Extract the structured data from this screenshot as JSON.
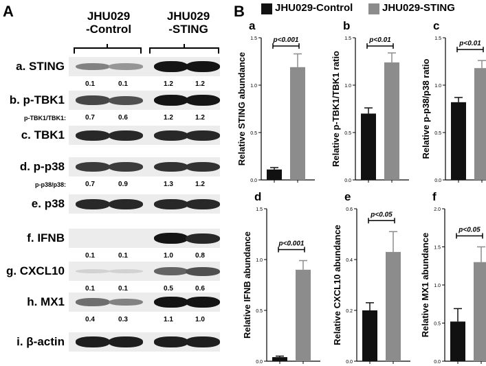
{
  "panel_a": {
    "letter": "A",
    "groups": [
      {
        "line1": "JHU029",
        "line2": "-Control"
      },
      {
        "line1": "JHU029",
        "line2": "-STING"
      }
    ],
    "rows": [
      {
        "label": "a. STING",
        "ratios": [
          "0.1",
          "0.1",
          "1.2",
          "1.2"
        ],
        "ratio_label": "",
        "intensity": [
          0.45,
          0.35,
          1.0,
          1.0
        ]
      },
      {
        "label": "b. p-TBK1",
        "ratios": [
          "0.7",
          "0.6",
          "1.2",
          "1.2"
        ],
        "ratio_label": "p-TBK1/TBK1:",
        "intensity": [
          0.75,
          0.7,
          1.0,
          1.0
        ]
      },
      {
        "label": "c. TBK1",
        "ratios": [],
        "ratio_label": "",
        "intensity": [
          0.9,
          0.9,
          0.9,
          0.9
        ]
      },
      {
        "label": "d. p-p38",
        "ratios": [
          "0.7",
          "0.9",
          "1.3",
          "1.2"
        ],
        "ratio_label": "p-p38/p38:",
        "intensity": [
          0.8,
          0.8,
          0.85,
          0.85
        ]
      },
      {
        "label": "e. p38",
        "ratios": [],
        "ratio_label": "",
        "intensity": [
          0.9,
          0.9,
          0.9,
          0.9
        ]
      },
      {
        "label": "f. IFNB",
        "ratios": [
          "0.1",
          "0.1",
          "1.0",
          "0.8"
        ],
        "ratio_label": "",
        "intensity": [
          0.0,
          0.0,
          1.0,
          0.9
        ]
      },
      {
        "label": "g. CXCL10",
        "ratios": [
          "0.1",
          "0.1",
          "0.5",
          "0.6"
        ],
        "ratio_label": "",
        "intensity": [
          0.05,
          0.05,
          0.6,
          0.7
        ]
      },
      {
        "label": "h. MX1",
        "ratios": [
          "0.4",
          "0.3",
          "1.1",
          "1.0"
        ],
        "ratio_label": "",
        "intensity": [
          0.55,
          0.45,
          1.0,
          1.0
        ]
      },
      {
        "label": "i. β-actin",
        "ratios": [],
        "ratio_label": "",
        "intensity": [
          0.95,
          0.95,
          0.95,
          0.95
        ]
      }
    ]
  },
  "panel_b": {
    "letter": "B",
    "legend": [
      {
        "label": "JHU029-Control",
        "color": "#111111"
      },
      {
        "label": "JHU029-STING",
        "color": "#8c8c8c"
      }
    ]
  },
  "chart_data": [
    {
      "type": "bar",
      "panel": "a",
      "ylabel": "Relative STING abundance",
      "ylim": [
        0,
        1.5
      ],
      "yticks": [
        "0.0",
        "0.5",
        "1.0",
        "1.5"
      ],
      "categories": [
        "JHU029-Control",
        "JHU029-STING"
      ],
      "values": [
        0.11,
        1.19
      ],
      "errors": [
        0.02,
        0.14
      ],
      "significance": "p<0.001"
    },
    {
      "type": "bar",
      "panel": "b",
      "ylabel": "Relative p-TBK1/TBK1 ratio",
      "ylim": [
        0,
        1.5
      ],
      "yticks": [
        "0.0",
        "0.5",
        "1.0",
        "1.5"
      ],
      "categories": [
        "JHU029-Control",
        "JHU029-STING"
      ],
      "values": [
        0.7,
        1.24
      ],
      "errors": [
        0.06,
        0.1
      ],
      "significance": "p<0.01"
    },
    {
      "type": "bar",
      "panel": "c",
      "ylabel": "Relative p-p38/p38 ratio",
      "ylim": [
        0,
        1.5
      ],
      "yticks": [
        "0.0",
        "0.5",
        "1.0",
        "1.5"
      ],
      "categories": [
        "JHU029-Control",
        "JHU029-STING"
      ],
      "values": [
        0.82,
        1.18
      ],
      "errors": [
        0.05,
        0.08
      ],
      "significance": "p<0.01"
    },
    {
      "type": "bar",
      "panel": "d",
      "ylabel": "Relative IFNB abundance",
      "ylim": [
        0,
        1.5
      ],
      "yticks": [
        "0.0",
        "0.5",
        "1.0",
        "1.5"
      ],
      "categories": [
        "JHU029-Control",
        "JHU029-STING"
      ],
      "values": [
        0.04,
        0.9
      ],
      "errors": [
        0.01,
        0.09
      ],
      "significance": "p<0.001"
    },
    {
      "type": "bar",
      "panel": "e",
      "ylabel": "Relative CXCL10 abundance",
      "ylim": [
        0,
        0.6
      ],
      "yticks": [
        "0.0",
        "0.2",
        "0.4",
        "0.6"
      ],
      "categories": [
        "JHU029-Control",
        "JHU029-STING"
      ],
      "values": [
        0.2,
        0.43
      ],
      "errors": [
        0.03,
        0.08
      ],
      "significance": "p<0.05"
    },
    {
      "type": "bar",
      "panel": "f",
      "ylabel": "Relative MX1 abundance",
      "ylim": [
        0,
        2.0
      ],
      "yticks": [
        "0.0",
        "0.5",
        "1.0",
        "1.5",
        "2.0"
      ],
      "categories": [
        "JHU029-Control",
        "JHU029-STING"
      ],
      "values": [
        0.52,
        1.3
      ],
      "errors": [
        0.17,
        0.2
      ],
      "significance": "p<0.05"
    }
  ]
}
